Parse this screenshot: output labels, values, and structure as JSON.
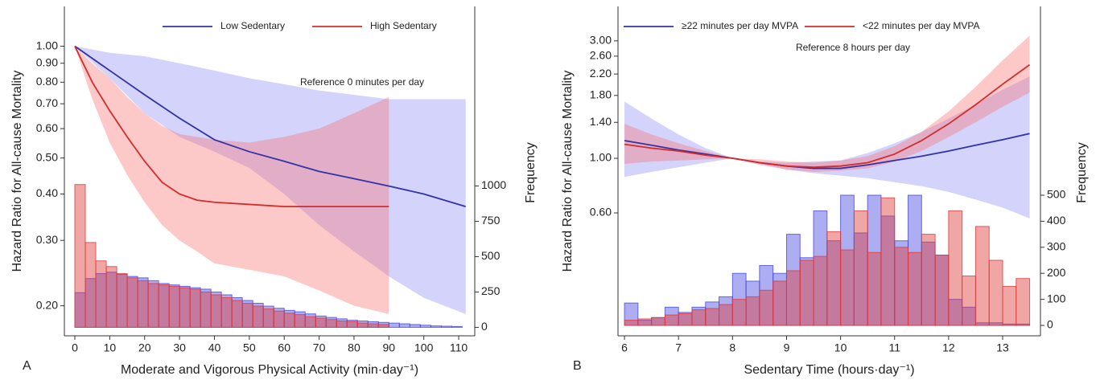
{
  "chart_data": [
    {
      "type": "line",
      "panel": "A",
      "log_y": true,
      "legend": "top",
      "xlabel": "Moderate and Vigorous Physical Activity (min·day⁻¹)",
      "ylabel": "Hazard Ratio for All-cause Mortality",
      "y2label": "Frequency",
      "annotation": "Reference 0 minutes per day",
      "xlim": [
        -3,
        114.6
      ],
      "xticks": [
        0,
        10,
        20,
        30,
        40,
        50,
        60,
        70,
        80,
        90,
        100,
        110
      ],
      "ylim": [
        0.166,
        1.28
      ],
      "yticks": [
        {
          "value": 0.2,
          "label": "0.20"
        },
        {
          "value": 0.3,
          "label": "0.30"
        },
        {
          "value": 0.4,
          "label": "0.40"
        },
        {
          "value": 0.5,
          "label": "0.50"
        },
        {
          "value": 0.6,
          "label": "0.60"
        },
        {
          "value": 0.7,
          "label": "0.70"
        },
        {
          "value": 0.8,
          "label": "0.80"
        },
        {
          "value": 0.9,
          "label": "0.90"
        },
        {
          "value": 1,
          "label": "1.00"
        }
      ],
      "y2lim": [
        -60,
        2270
      ],
      "y2ticks": [
        0,
        250,
        500,
        750,
        1000
      ],
      "series": [
        {
          "name": "Low Sedentary",
          "color": "#3232a8",
          "band_color": "rgba(120,120,245,0.33)",
          "x": [
            0,
            10,
            20,
            30,
            40,
            50,
            60,
            70,
            80,
            90,
            100,
            112
          ],
          "values": [
            1.0,
            0.86,
            0.74,
            0.64,
            0.56,
            0.52,
            0.49,
            0.46,
            0.44,
            0.42,
            0.4,
            0.37
          ],
          "lower": [
            1.0,
            0.82,
            0.66,
            0.57,
            0.52,
            0.47,
            0.4,
            0.33,
            0.28,
            0.24,
            0.21,
            0.19
          ],
          "upper": [
            1.0,
            0.96,
            0.94,
            0.9,
            0.86,
            0.82,
            0.79,
            0.76,
            0.74,
            0.72,
            0.72,
            0.72
          ]
        },
        {
          "name": "High Sedentary",
          "color": "#d42b2b",
          "band_color": "rgba(250,110,110,0.38)",
          "x": [
            0,
            5,
            10,
            15,
            20,
            25,
            30,
            35,
            40,
            50,
            60,
            70,
            80,
            90
          ],
          "values": [
            1.0,
            0.8,
            0.67,
            0.57,
            0.49,
            0.43,
            0.4,
            0.385,
            0.38,
            0.375,
            0.37,
            0.37,
            0.37,
            0.37
          ],
          "lower": [
            1.0,
            0.72,
            0.55,
            0.45,
            0.38,
            0.33,
            0.3,
            0.28,
            0.26,
            0.25,
            0.24,
            0.22,
            0.2,
            0.19
          ],
          "upper": [
            1.0,
            0.9,
            0.82,
            0.73,
            0.66,
            0.61,
            0.58,
            0.57,
            0.56,
            0.55,
            0.57,
            0.6,
            0.66,
            0.73
          ]
        }
      ],
      "histogram": {
        "bins": [
          0,
          3,
          6,
          9,
          12,
          15,
          18,
          21,
          24,
          27,
          30,
          33,
          36,
          39,
          42,
          45,
          48,
          51,
          54,
          57,
          60,
          63,
          66,
          69,
          72,
          75,
          78,
          81,
          84,
          87,
          90,
          93,
          96,
          99,
          102,
          105,
          108,
          111
        ],
        "series": [
          {
            "color": "#4a4ae0",
            "values": [
              245,
              345,
              380,
              390,
              375,
              360,
              350,
              330,
              310,
              300,
              290,
              280,
              270,
              250,
              230,
              210,
              190,
              170,
              150,
              135,
              120,
              110,
              95,
              80,
              70,
              60,
              50,
              45,
              40,
              35,
              30,
              25,
              20,
              15,
              10,
              8,
              6
            ]
          },
          {
            "color": "#e03a3a",
            "values": [
              1010,
              600,
              470,
              430,
              380,
              350,
              330,
              310,
              300,
              290,
              280,
              270,
              250,
              230,
              210,
              190,
              170,
              150,
              130,
              115,
              100,
              90,
              75,
              65,
              55,
              45,
              40,
              30,
              25,
              20,
              0,
              0,
              0,
              0,
              0,
              0,
              0
            ]
          }
        ]
      }
    },
    {
      "type": "line",
      "panel": "B",
      "log_y": true,
      "legend": "top",
      "xlabel": "Sedentary Time (hours·day⁻¹)",
      "ylabel": "Hazard Ratio for All-cause Mortality",
      "y2label": "Frequency",
      "annotation": "Reference 8 hours per day",
      "xlim": [
        5.88,
        13.7
      ],
      "xticks": [
        6,
        7,
        8,
        9,
        10,
        11,
        12,
        13
      ],
      "ylim": [
        0.19,
        4.14
      ],
      "yticks": [
        {
          "value": 0.6,
          "label": "0.60"
        },
        {
          "value": 1,
          "label": "1.00"
        },
        {
          "value": 1.4,
          "label": "1.40"
        },
        {
          "value": 1.8,
          "label": "1.80"
        },
        {
          "value": 2.2,
          "label": "2.20"
        },
        {
          "value": 2.6,
          "label": "2.60"
        },
        {
          "value": 3,
          "label": "3.00"
        }
      ],
      "y2lim": [
        -40,
        1225
      ],
      "y2ticks": [
        0,
        100,
        200,
        300,
        400,
        500
      ],
      "series": [
        {
          "name": "≥22 minutes per day MVPA",
          "color": "#3232a8",
          "band_color": "rgba(120,120,245,0.33)",
          "x": [
            6,
            6.5,
            7,
            7.5,
            8,
            8.5,
            9,
            9.5,
            10,
            10.5,
            11,
            11.5,
            12,
            12.5,
            13,
            13.5
          ],
          "values": [
            1.18,
            1.13,
            1.08,
            1.04,
            1.0,
            0.96,
            0.93,
            0.91,
            0.91,
            0.94,
            0.98,
            1.02,
            1.07,
            1.13,
            1.19,
            1.26
          ],
          "lower": [
            0.84,
            0.88,
            0.92,
            0.96,
            1.0,
            0.95,
            0.9,
            0.87,
            0.85,
            0.83,
            0.8,
            0.77,
            0.73,
            0.68,
            0.63,
            0.57
          ],
          "upper": [
            1.7,
            1.45,
            1.25,
            1.1,
            1.0,
            0.97,
            0.96,
            0.97,
            0.98,
            1.05,
            1.15,
            1.28,
            1.45,
            1.65,
            1.9,
            2.15
          ]
        },
        {
          "name": "<22 minutes per day MVPA",
          "color": "#d42b2b",
          "band_color": "rgba(250,110,110,0.38)",
          "x": [
            6,
            6.5,
            7,
            7.5,
            8,
            8.5,
            9,
            9.5,
            10,
            10.5,
            11,
            11.5,
            12,
            12.5,
            13,
            13.5
          ],
          "values": [
            1.14,
            1.1,
            1.07,
            1.03,
            1.0,
            0.96,
            0.93,
            0.92,
            0.93,
            0.96,
            1.04,
            1.18,
            1.38,
            1.65,
            2.0,
            2.4
          ],
          "lower": [
            0.95,
            0.97,
            0.98,
            0.99,
            1.0,
            0.94,
            0.9,
            0.88,
            0.89,
            0.91,
            0.97,
            1.07,
            1.22,
            1.4,
            1.62,
            1.85
          ],
          "upper": [
            1.38,
            1.25,
            1.15,
            1.07,
            1.0,
            0.99,
            0.97,
            0.96,
            0.98,
            1.02,
            1.12,
            1.28,
            1.55,
            1.95,
            2.5,
            3.15
          ]
        }
      ],
      "histogram": {
        "bins": [
          6,
          6.25,
          6.5,
          6.75,
          7,
          7.25,
          7.5,
          7.75,
          8,
          8.25,
          8.5,
          8.75,
          9,
          9.25,
          9.5,
          9.75,
          10,
          10.25,
          10.5,
          10.75,
          11,
          11.25,
          11.5,
          11.75,
          12,
          12.25,
          12.5,
          12.75,
          13,
          13.25,
          13.5
        ],
        "series": [
          {
            "color": "#4a4ae0",
            "values": [
              86,
              20,
              30,
              70,
              50,
              70,
              90,
              110,
              200,
              170,
              230,
              200,
              350,
              260,
              440,
              325,
              500,
              355,
              500,
              420,
              325,
              500,
              320,
              270,
              100,
              70,
              10,
              10,
              5,
              5
            ]
          },
          {
            "color": "#e03a3a",
            "values": [
              20,
              25,
              30,
              40,
              45,
              60,
              65,
              80,
              100,
              110,
              135,
              170,
              210,
              250,
              265,
              360,
              290,
              440,
              280,
              490,
              300,
              280,
              350,
              270,
              440,
              190,
              380,
              250,
              150,
              180
            ]
          }
        ]
      }
    }
  ]
}
